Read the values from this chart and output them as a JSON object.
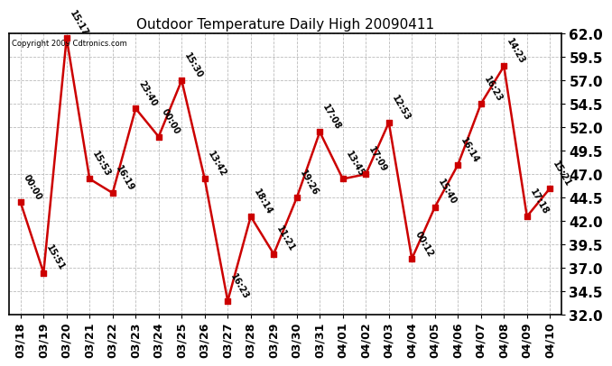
{
  "title": "Outdoor Temperature Daily High 20090411",
  "copyright": "Copyright 2009 Cdtronics.com",
  "dates": [
    "03/18",
    "03/19",
    "03/20",
    "03/21",
    "03/22",
    "03/23",
    "03/24",
    "03/25",
    "03/26",
    "03/27",
    "03/28",
    "03/29",
    "03/30",
    "03/31",
    "04/01",
    "04/02",
    "04/03",
    "04/04",
    "04/05",
    "04/06",
    "04/07",
    "04/08",
    "04/09",
    "04/10"
  ],
  "values": [
    44.0,
    36.5,
    61.5,
    46.5,
    45.0,
    54.0,
    51.0,
    57.0,
    46.5,
    33.5,
    42.5,
    38.5,
    44.5,
    51.5,
    46.5,
    47.0,
    52.5,
    38.0,
    43.5,
    48.0,
    54.5,
    58.5,
    42.5,
    45.5
  ],
  "labels": [
    "00:00",
    "15:51",
    "15:17",
    "15:53",
    "16:19",
    "23:40",
    "00:00",
    "15:30",
    "13:42",
    "16:23",
    "18:14",
    "11:21",
    "19:26",
    "17:08",
    "13:45",
    "17:09",
    "12:53",
    "00:12",
    "15:40",
    "16:14",
    "16:23",
    "14:23",
    "17:18",
    "15:21"
  ],
  "ylim": [
    32.0,
    62.0
  ],
  "yticks": [
    32.0,
    34.5,
    37.0,
    39.5,
    42.0,
    44.5,
    47.0,
    49.5,
    52.0,
    54.5,
    57.0,
    59.5,
    62.0
  ],
  "line_color": "#cc0000",
  "marker_color": "#cc0000",
  "bg_color": "#ffffff",
  "grid_color": "#bbbbbb",
  "title_fontsize": 11,
  "tick_fontsize": 9,
  "ytick_fontsize": 11,
  "label_fontsize": 7
}
